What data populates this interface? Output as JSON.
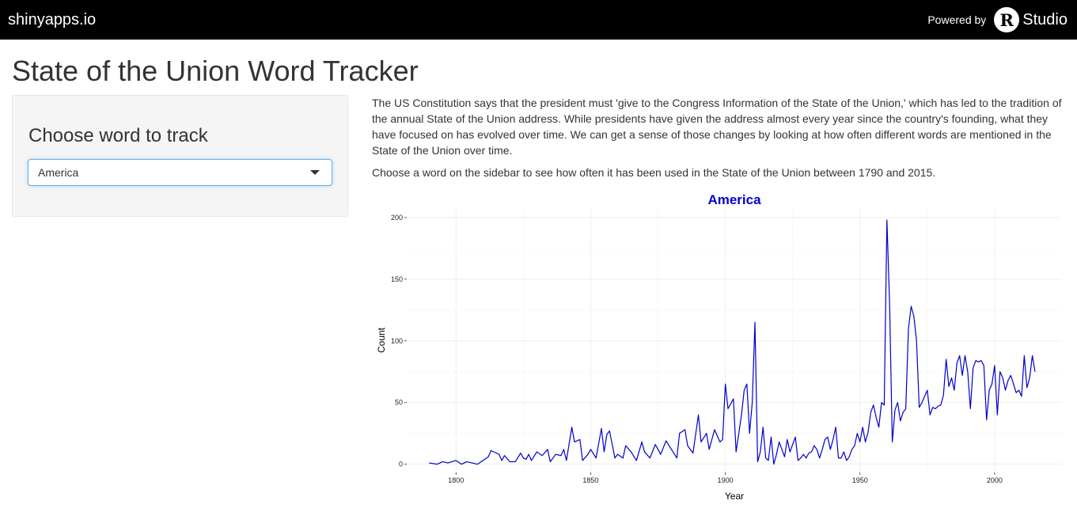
{
  "navbar": {
    "brand": "shinyapps.io",
    "powered_by": "Powered by",
    "logo_letter": "R",
    "logo_word": "Studio"
  },
  "page": {
    "title": "State of the Union Word Tracker"
  },
  "sidebar": {
    "label": "Choose word to track",
    "select": {
      "value": "America"
    }
  },
  "main": {
    "intro": "The US Constitution says that the president must 'give to the Congress Information of the State of the Union,' which has led to the tradition of the annual State of the Union address. While presidents have given the address almost every year since the country's founding, what they have focused on has evolved over time. We can get a sense of those changes by looking at how often different words are mentioned in the State of the Union over time.",
    "hint": "Choose a word on the sidebar to see how often it has been used in the State of the Union between 1790 and 2015."
  },
  "colors": {
    "navbar_bg": "#000000",
    "line": "#0000cc",
    "title": "#0000cc"
  },
  "chart_data": {
    "type": "line",
    "title": "America",
    "xlabel": "Year",
    "ylabel": "Count",
    "xlim": [
      1782,
      2025
    ],
    "ylim": [
      -6,
      207
    ],
    "x_ticks": [
      1800,
      1850,
      1900,
      1950,
      2000
    ],
    "y_ticks": [
      0,
      50,
      100,
      150,
      200
    ],
    "grid": true,
    "series": [
      {
        "x": [
          1790,
          1793,
          1795,
          1797,
          1800,
          1802,
          1804,
          1806,
          1808,
          1810,
          1812,
          1813,
          1815,
          1816,
          1817,
          1818,
          1820,
          1822,
          1824,
          1825,
          1826,
          1827,
          1828,
          1830,
          1832,
          1834,
          1835,
          1837,
          1839,
          1840,
          1841,
          1843,
          1844,
          1846,
          1847,
          1849,
          1850,
          1852,
          1854,
          1855,
          1856,
          1857,
          1859,
          1860,
          1862,
          1863,
          1865,
          1867,
          1869,
          1870,
          1872,
          1874,
          1876,
          1878,
          1880,
          1882,
          1883,
          1885,
          1886,
          1888,
          1890,
          1891,
          1893,
          1894,
          1896,
          1898,
          1899,
          1900,
          1901,
          1903,
          1904,
          1906,
          1907,
          1908,
          1909,
          1910,
          1911,
          1912,
          1913,
          1914,
          1915,
          1916,
          1917,
          1918,
          1919,
          1920,
          1921,
          1922,
          1923,
          1924,
          1925,
          1926,
          1927,
          1928,
          1929,
          1930,
          1931,
          1932,
          1933,
          1934,
          1935,
          1936,
          1937,
          1938,
          1939,
          1940,
          1941,
          1942,
          1943,
          1944,
          1945,
          1946,
          1947,
          1948,
          1949,
          1950,
          1951,
          1952,
          1953,
          1954,
          1955,
          1956,
          1957,
          1958,
          1959,
          1960,
          1961,
          1962,
          1963,
          1964,
          1965,
          1966,
          1967,
          1968,
          1969,
          1970,
          1971,
          1972,
          1973,
          1974,
          1975,
          1976,
          1977,
          1978,
          1979,
          1980,
          1981,
          1982,
          1983,
          1984,
          1985,
          1986,
          1987,
          1988,
          1989,
          1990,
          1991,
          1992,
          1993,
          1994,
          1995,
          1996,
          1997,
          1998,
          1999,
          2000,
          2001,
          2002,
          2003,
          2004,
          2005,
          2006,
          2007,
          2008,
          2009,
          2010,
          2011,
          2012,
          2013,
          2014,
          2015
        ],
        "values": [
          1,
          0,
          2,
          1,
          3,
          0,
          2,
          1,
          0,
          3,
          6,
          11,
          9,
          8,
          3,
          7,
          2,
          2,
          9,
          5,
          4,
          8,
          3,
          10,
          7,
          12,
          2,
          8,
          7,
          12,
          3,
          30,
          18,
          20,
          3,
          8,
          12,
          5,
          29,
          10,
          24,
          27,
          5,
          8,
          5,
          15,
          10,
          3,
          18,
          10,
          5,
          16,
          8,
          19,
          12,
          5,
          25,
          28,
          15,
          9,
          40,
          18,
          25,
          12,
          28,
          18,
          20,
          65,
          45,
          53,
          10,
          40,
          60,
          65,
          25,
          50,
          115,
          2,
          10,
          30,
          5,
          3,
          22,
          0,
          8,
          18,
          12,
          6,
          20,
          10,
          16,
          22,
          3,
          5,
          8,
          5,
          9,
          10,
          15,
          12,
          5,
          12,
          20,
          22,
          12,
          20,
          30,
          5,
          5,
          10,
          3,
          6,
          12,
          15,
          25,
          18,
          30,
          18,
          26,
          42,
          48,
          38,
          30,
          50,
          48,
          198,
          130,
          18,
          44,
          50,
          35,
          42,
          45,
          110,
          128,
          120,
          100,
          46,
          50,
          55,
          60,
          40,
          46,
          45,
          47,
          48,
          56,
          85,
          63,
          70,
          60,
          82,
          88,
          72,
          88,
          75,
          45,
          78,
          84,
          83,
          84,
          80,
          36,
          60,
          65,
          80,
          40,
          75,
          70,
          60,
          68,
          72,
          65,
          58,
          60,
          55,
          88,
          62,
          70,
          88,
          75
        ]
      }
    ]
  }
}
